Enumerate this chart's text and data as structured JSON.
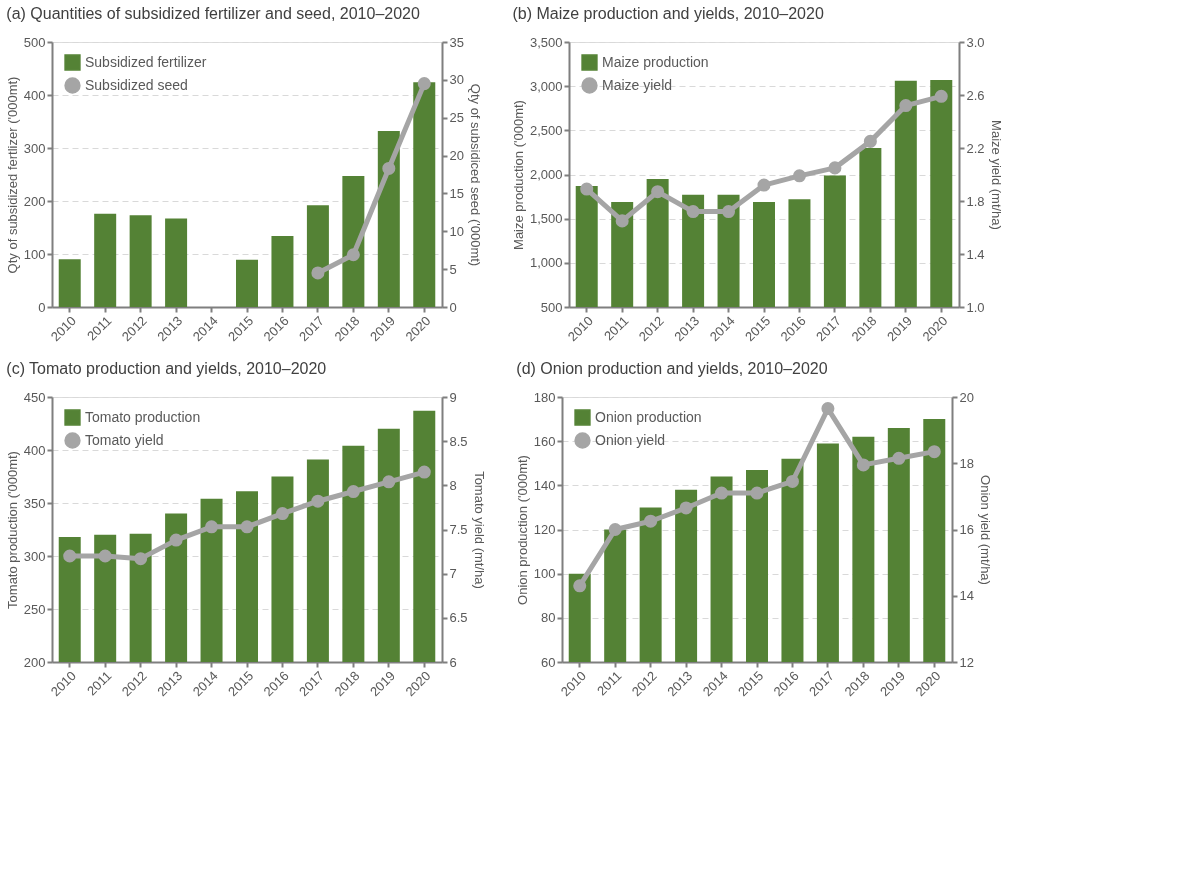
{
  "chart_data": [
    {
      "type": "bar",
      "title": "(a) Quantities of subsidized fertilizer and seed, 2010–2020",
      "ylabel": "Qty of subsidized fertlizer ('000mt)",
      "y2label": "Qty of subsidiced seed ('000mt)",
      "categories": [
        "2010",
        "2011",
        "2012",
        "2013",
        "2014",
        "2015",
        "2016",
        "2017",
        "2018",
        "2019",
        "2020"
      ],
      "series": [
        {
          "name": "Subsidized fertilizer",
          "color": "#548235",
          "values": [
            90,
            176,
            173,
            167,
            null,
            89,
            134,
            192,
            247,
            332,
            424
          ]
        },
        {
          "name": "Subsidized seed",
          "type": "line",
          "axis": "y2",
          "color": "#a5a5a5",
          "values": [
            null,
            null,
            null,
            null,
            null,
            null,
            null,
            4.5,
            6.9,
            18.3,
            29.5
          ]
        }
      ],
      "ylim": [
        0,
        500
      ],
      "yticks": [
        0,
        100,
        200,
        300,
        400,
        500
      ],
      "y2lim": [
        0,
        35
      ],
      "y2ticks": [
        0,
        5,
        10,
        15,
        20,
        25,
        30,
        35
      ],
      "grid": "y",
      "legend": "top left",
      "marker": "circle"
    },
    {
      "type": "bar",
      "title": "(b) Maize production and yields, 2010–2020",
      "ylabel": "Maize production ('000mt)",
      "y2label": "Maize yield (mt/ha)",
      "categories": [
        "2010",
        "2011",
        "2012",
        "2013",
        "2014",
        "2015",
        "2016",
        "2017",
        "2018",
        "2019",
        "2020"
      ],
      "series": [
        {
          "name": "Maize production",
          "color": "#548235",
          "values": [
            1870,
            1690,
            1950,
            1770,
            1770,
            1690,
            1720,
            1990,
            2300,
            3060,
            3070
          ]
        },
        {
          "name": "Maize yield",
          "type": "line",
          "axis": "y2",
          "color": "#a5a5a5",
          "values": [
            1.89,
            1.65,
            1.87,
            1.72,
            1.72,
            1.92,
            1.99,
            2.05,
            2.25,
            2.52,
            2.59
          ]
        }
      ],
      "ylim": [
        500,
        3500
      ],
      "yticks": [
        500,
        {
          "value": 1000,
          "label": "1,000"
        },
        {
          "value": 1500,
          "label": "1,500"
        },
        {
          "value": 2000,
          "label": "2,000"
        },
        {
          "value": 2500,
          "label": "2,500"
        },
        {
          "value": 3000,
          "label": "3,000"
        },
        {
          "value": 3500,
          "label": "3,500"
        }
      ],
      "y2lim": [
        1.0,
        3.0
      ],
      "y2ticks": [
        {
          "value": 1,
          "label": "1.0"
        },
        1.4,
        1.8,
        2.2,
        2.6,
        {
          "value": 3,
          "label": "3.0"
        }
      ],
      "grid": "y",
      "legend": "top left",
      "marker": "circle"
    },
    {
      "type": "bar",
      "title": "(c) Tomato production and yields, 2010–2020",
      "ylabel": "Tomato production ('000mt)",
      "y2label": "Tomato yield (mt/ha)",
      "categories": [
        "2010",
        "2011",
        "2012",
        "2013",
        "2014",
        "2015",
        "2016",
        "2017",
        "2018",
        "2019",
        "2020"
      ],
      "series": [
        {
          "name": "Tomato production",
          "color": "#548235",
          "values": [
            318,
            320,
            321,
            340,
            354,
            361,
            375,
            391,
            404,
            420,
            437
          ]
        },
        {
          "name": "Tomato yield",
          "type": "line",
          "axis": "y2",
          "color": "#a5a5a5",
          "values": [
            7.2,
            7.2,
            7.17,
            7.38,
            7.53,
            7.53,
            7.68,
            7.82,
            7.93,
            8.04,
            8.15
          ]
        }
      ],
      "ylim": [
        200,
        450
      ],
      "yticks": [
        200,
        250,
        300,
        350,
        400,
        450
      ],
      "y2lim": [
        6,
        9
      ],
      "y2ticks": [
        6,
        6.5,
        7,
        7.5,
        8,
        8.5,
        9
      ],
      "grid": "y",
      "legend": "top left",
      "marker": "circle"
    },
    {
      "type": "bar",
      "title": "(d) Onion production and yields, 2010–2020",
      "ylabel": "Onion production ('000mt)",
      "y2label": "Onion yield (mt/ha)",
      "categories": [
        "2010",
        "2011",
        "2012",
        "2013",
        "2014",
        "2015",
        "2016",
        "2017",
        "2018",
        "2019",
        "2020"
      ],
      "series": [
        {
          "name": "Onion production",
          "color": "#548235",
          "values": [
            100,
            120,
            130,
            138,
            144,
            147,
            152,
            159,
            162,
            166,
            170
          ]
        },
        {
          "name": "Onion yield",
          "type": "line",
          "axis": "y2",
          "color": "#a5a5a5",
          "values": [
            14.3,
            16.0,
            16.25,
            16.65,
            17.1,
            17.1,
            17.45,
            19.65,
            17.95,
            18.15,
            18.35
          ]
        }
      ],
      "ylim": [
        60,
        180
      ],
      "yticks": [
        60,
        80,
        100,
        120,
        140,
        160,
        180
      ],
      "y2lim": [
        12,
        20
      ],
      "y2ticks": [
        12,
        14,
        16,
        18,
        20
      ],
      "grid": "y",
      "legend": "top left",
      "marker": "circle"
    }
  ]
}
